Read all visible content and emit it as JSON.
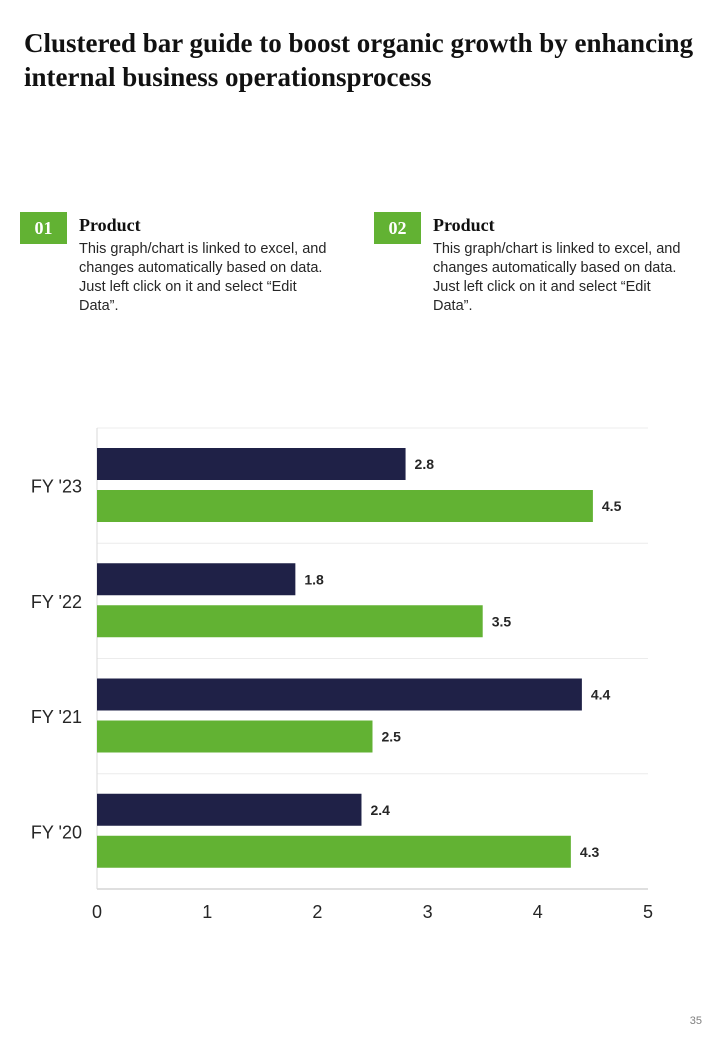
{
  "title": "Clustered bar guide to boost organic growth by enhancing internal business operationsprocess",
  "cards": [
    {
      "number": "01",
      "heading": "Product",
      "text": "This graph/chart is linked to excel, and changes automatically based on data. Just left click on it and select “Edit Data”."
    },
    {
      "number": "02",
      "heading": "Product",
      "text": "This graph/chart is linked to excel, and changes automatically based on data. Just left click on it and select “Edit Data”."
    }
  ],
  "page_number": "35",
  "colors": {
    "series_dark": "#1f2147",
    "series_green": "#62b233",
    "accent": "#62b233"
  },
  "chart_data": {
    "type": "bar",
    "orientation": "horizontal",
    "categories": [
      "FY '23",
      "FY '22",
      "FY '21",
      "FY '20"
    ],
    "series": [
      {
        "values": [
          2.8,
          1.8,
          4.4,
          2.4
        ],
        "color": "#1f2147"
      },
      {
        "values": [
          4.5,
          3.5,
          2.5,
          4.3
        ],
        "color": "#62b233"
      }
    ],
    "xlim": [
      0,
      5
    ],
    "x_ticks": [
      "0",
      "1",
      "2",
      "3",
      "4",
      "5"
    ],
    "data_labels": [
      [
        "2.8",
        "1.8",
        "4.4",
        "2.4"
      ],
      [
        "4.5",
        "3.5",
        "2.5",
        "4.3"
      ]
    ],
    "grid": true,
    "legend": "none"
  }
}
